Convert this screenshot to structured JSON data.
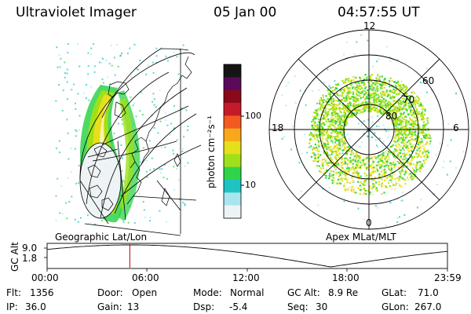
{
  "header": {
    "instrument": "Ultraviolet Imager",
    "date": "05 Jan 00",
    "time": "04:57:55 UT"
  },
  "colorbar": {
    "label": "photon cm⁻²s⁻¹",
    "ticks": [
      "100",
      "10"
    ],
    "colors": [
      "#151515",
      "#5a0a5a",
      "#8a0a1a",
      "#c51a2a",
      "#f25a22",
      "#f8a81a",
      "#e6df1a",
      "#9fe01a",
      "#2fd44a",
      "#1fc3c3",
      "#a9e5ee",
      "#eef3f5"
    ]
  },
  "geo_panel": {
    "title": "Geographic Lat/Lon"
  },
  "polar_panel": {
    "title": "Apex  MLat/MLT",
    "mlt_labels": {
      "top": "12",
      "left": "18",
      "right": "6",
      "bottom": "0"
    },
    "lat_labels": [
      "60",
      "70",
      "80"
    ]
  },
  "timeline": {
    "ylabel": "GC Alt",
    "y_ticks": [
      "9.0",
      "1.8"
    ],
    "x_ticks": [
      "00:00",
      "06:00",
      "12:00",
      "18:00",
      "23:59"
    ],
    "marker_time_hours": 4.96,
    "marker_color": "#cc2222"
  },
  "status": {
    "row1": [
      {
        "label": "Flt:",
        "value": "1356"
      },
      {
        "label": "Door:",
        "value": "Open"
      },
      {
        "label": "Mode:",
        "value": "Normal"
      },
      {
        "label": "GC Alt:",
        "value": "8.9 Re"
      },
      {
        "label": "GLat:",
        "value": "71.0"
      }
    ],
    "row2": [
      {
        "label": "IP:",
        "value": "36.0"
      },
      {
        "label": "Gain:",
        "value": "13"
      },
      {
        "label": "Dsp:",
        "value": "-5.4"
      },
      {
        "label": "Seq:",
        "value": "30"
      },
      {
        "label": "GLon:",
        "value": "267.0"
      }
    ]
  }
}
